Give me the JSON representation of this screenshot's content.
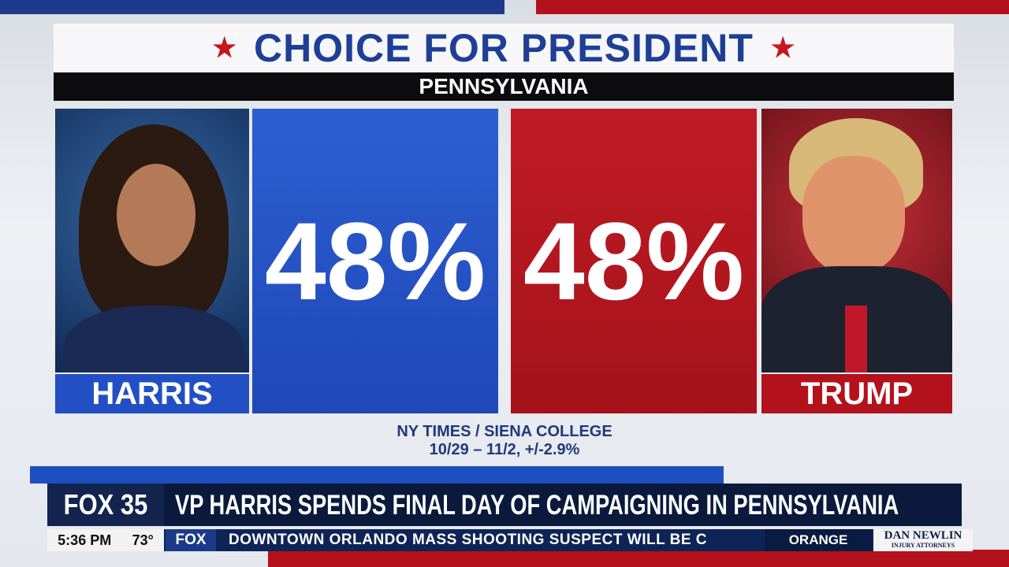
{
  "graphic": {
    "title": "CHOICE FOR PRESIDENT",
    "state": "PENNSYLVANIA",
    "candidates": [
      {
        "name": "HARRIS",
        "value": "48%"
      },
      {
        "name": "TRUMP",
        "value": "48%"
      }
    ],
    "source": "NY TIMES / SIENA COLLEGE",
    "dates": "10/29 – 11/2, +/-2.9%"
  },
  "ticker": {
    "logo": "FOX 35",
    "headline": "VP HARRIS SPENDS FINAL DAY OF CAMPAIGNING IN PENNSYLVANIA",
    "time": "5:36 PM",
    "temp": "73°",
    "network": "FOX",
    "crawl": "DOWNTOWN ORLANDO MASS SHOOTING SUSPECT WILL BE C",
    "category": "ORANGE",
    "sponsor": "DAN NEWLIN",
    "sponsor_sub": "INJURY ATTORNEYS"
  }
}
